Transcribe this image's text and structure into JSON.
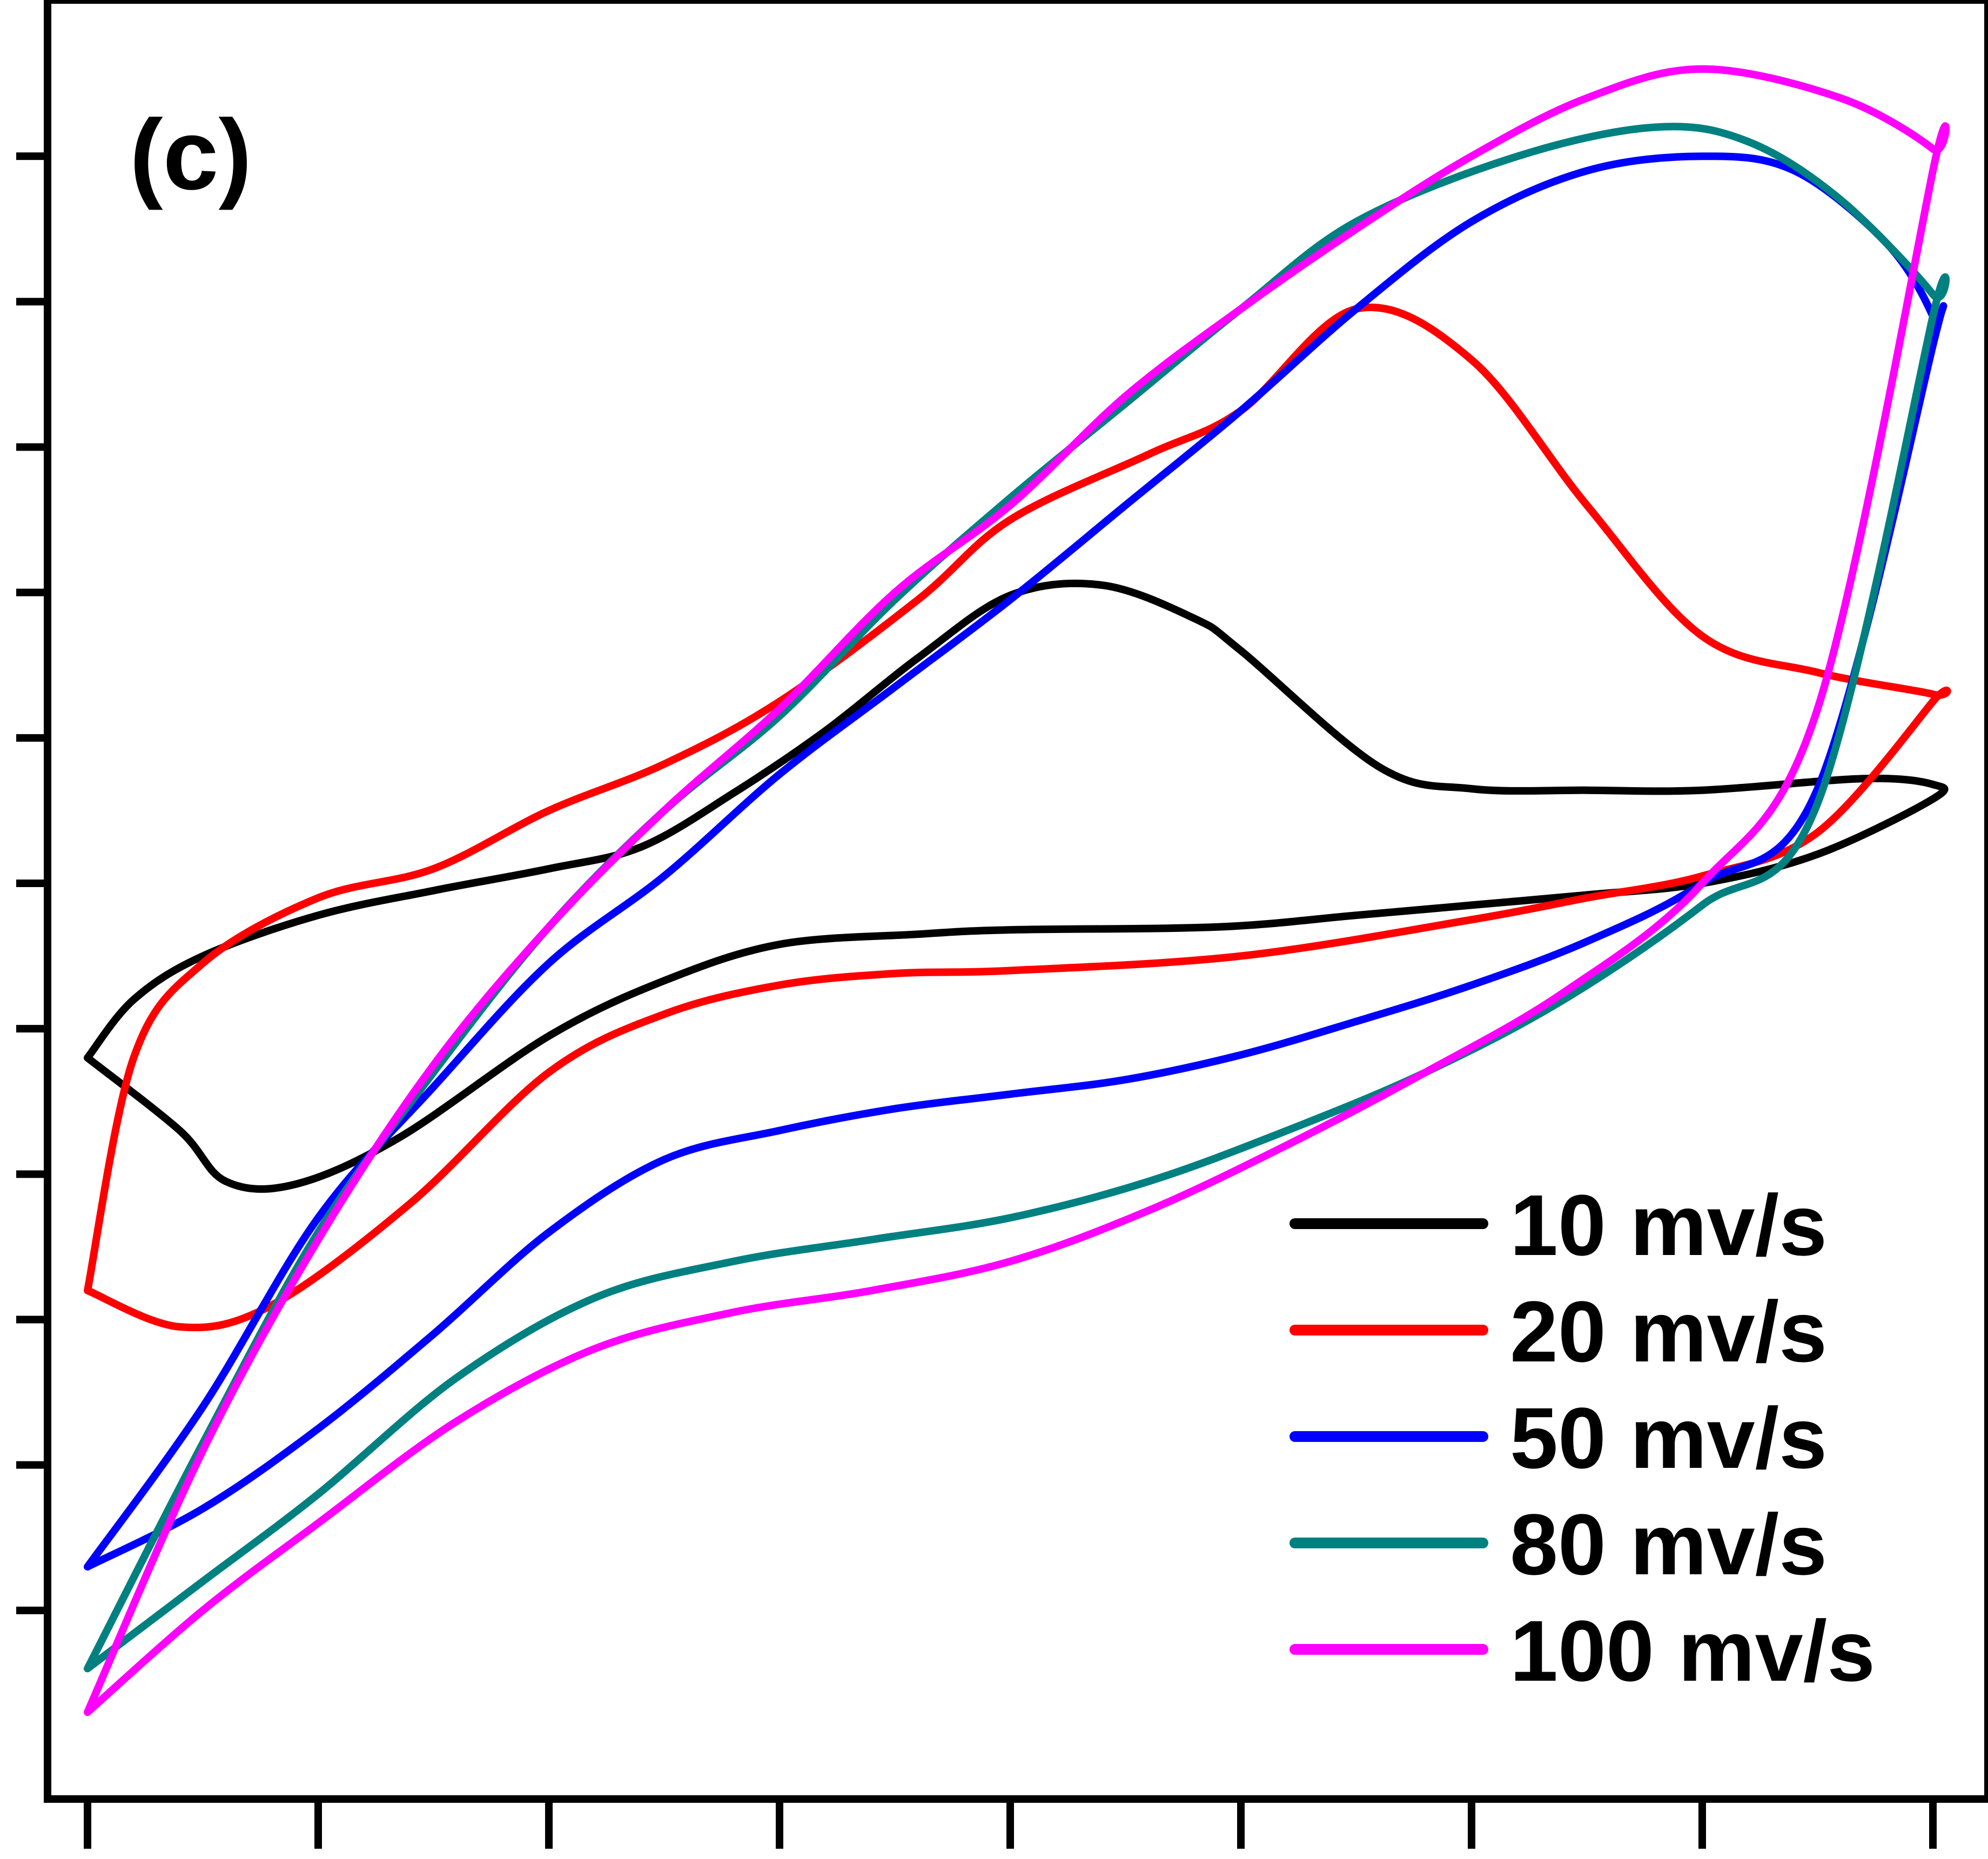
{
  "chart_data": {
    "type": "line",
    "panel_label": "(c)",
    "xlabel": "",
    "ylabel": "",
    "x_tick_labels": [],
    "y_tick_labels": [],
    "xlim": [
      0,
      8
    ],
    "ylim": [
      -6,
      6
    ],
    "x_ticks": [
      0,
      1,
      2,
      3,
      4,
      5,
      6,
      7,
      8
    ],
    "y_ticks": [
      -5,
      -4,
      -3,
      -2,
      -1,
      0,
      1,
      2,
      3,
      4,
      5
    ],
    "grid": false,
    "legend_position": "bottom-right",
    "series": [
      {
        "name": "10 mv/s",
        "color": "#000000",
        "x": [
          0,
          0.4,
          0.6,
          0.9,
          1.35,
          2.0,
          2.5,
          3.0,
          3.6,
          4.0,
          4.9,
          5.5,
          6.0,
          6.5,
          7.0,
          7.5,
          8.0,
          8.0,
          7.7,
          7.0,
          6.5,
          6.0,
          5.6,
          5.0,
          4.8,
          4.4,
          4.0,
          3.6,
          3.2,
          2.8,
          2.4,
          2.0,
          1.5,
          1.0,
          0.5,
          0.2,
          0
        ],
        "y": [
          -1.2,
          -1.7,
          -2.05,
          -2.07,
          -1.75,
          -1.05,
          -0.67,
          -0.42,
          -0.35,
          -0.32,
          -0.3,
          -0.22,
          -0.15,
          -0.08,
          0.0,
          0.2,
          0.58,
          0.68,
          0.72,
          0.64,
          0.64,
          0.65,
          0.8,
          1.6,
          1.82,
          2.05,
          1.98,
          1.55,
          1.05,
          0.62,
          0.25,
          0.1,
          -0.05,
          -0.22,
          -0.5,
          -0.8,
          -1.2
        ]
      },
      {
        "name": "20 mv/s",
        "color": "#ff0000",
        "x": [
          0,
          0.4,
          0.8,
          1.4,
          2.0,
          2.5,
          3.0,
          3.5,
          4.0,
          5.0,
          6.0,
          6.5,
          7.0,
          7.5,
          8.0,
          8.0,
          7.5,
          7.0,
          6.5,
          6.0,
          5.5,
          5.0,
          4.6,
          4.0,
          3.6,
          3.0,
          2.5,
          2.0,
          1.5,
          1.0,
          0.5,
          0.2,
          0
        ],
        "y": [
          -2.8,
          -3.05,
          -2.9,
          -2.2,
          -1.3,
          -0.9,
          -0.7,
          -0.62,
          -0.6,
          -0.5,
          -0.25,
          -0.1,
          0.05,
          0.35,
          1.25,
          1.3,
          1.45,
          1.7,
          2.6,
          3.6,
          3.95,
          3.25,
          2.95,
          2.5,
          1.95,
          1.25,
          0.82,
          0.5,
          0.1,
          -0.1,
          -0.55,
          -1.2,
          -2.8
        ]
      },
      {
        "name": "50 mv/s",
        "color": "#0000ff",
        "x": [
          0,
          0.5,
          1.0,
          1.5,
          2.0,
          2.5,
          3.0,
          3.5,
          4.0,
          4.5,
          5.0,
          5.5,
          6.0,
          6.5,
          7.0,
          7.5,
          8.0,
          8.0,
          7.8,
          7.4,
          7.0,
          6.5,
          6.0,
          5.5,
          5.0,
          4.5,
          4.0,
          3.5,
          3.0,
          2.5,
          2.0,
          1.5,
          1.0,
          0.5,
          0
        ],
        "y": [
          -4.7,
          -4.3,
          -3.75,
          -3.1,
          -2.4,
          -1.9,
          -1.7,
          -1.55,
          -1.45,
          -1.35,
          -1.18,
          -0.95,
          -0.7,
          -0.4,
          0.0,
          0.65,
          3.7,
          3.9,
          4.4,
          4.9,
          5.0,
          4.9,
          4.55,
          3.95,
          3.25,
          2.6,
          1.95,
          1.35,
          0.75,
          0.05,
          -0.55,
          -1.4,
          -2.3,
          -3.6,
          -4.7
        ]
      },
      {
        "name": "80 mv/s",
        "color": "#008080",
        "x": [
          0,
          0.5,
          1.0,
          1.6,
          2.2,
          2.8,
          3.4,
          4.0,
          4.6,
          5.2,
          5.8,
          6.4,
          7.0,
          7.5,
          8.0,
          8.0,
          7.6,
          7.2,
          6.8,
          6.2,
          5.5,
          5.0,
          4.5,
          4.0,
          3.5,
          3.0,
          2.5,
          2.0,
          1.5,
          1.0,
          0.5,
          0
        ],
        "y": [
          -5.4,
          -4.8,
          -4.2,
          -3.4,
          -2.85,
          -2.6,
          -2.45,
          -2.3,
          -2.05,
          -1.7,
          -1.3,
          -0.8,
          -0.15,
          0.55,
          3.9,
          4.05,
          4.7,
          5.1,
          5.2,
          5.0,
          4.55,
          3.95,
          3.3,
          2.65,
          1.95,
          1.15,
          0.5,
          -0.3,
          -1.3,
          -2.4,
          -3.85,
          -5.4
        ]
      },
      {
        "name": "100 mv/s",
        "color": "#ff00ff",
        "x": [
          0,
          0.5,
          1.0,
          1.6,
          2.2,
          2.8,
          3.4,
          4.0,
          4.6,
          5.2,
          5.8,
          6.4,
          7.0,
          7.5,
          8.0,
          8.0,
          7.6,
          7.0,
          6.5,
          6.0,
          5.5,
          5.0,
          4.5,
          4.0,
          3.5,
          3.0,
          2.5,
          2.0,
          1.5,
          1.0,
          0.5,
          0
        ],
        "y": [
          -5.7,
          -5.0,
          -4.4,
          -3.7,
          -3.2,
          -2.95,
          -2.8,
          -2.6,
          -2.25,
          -1.8,
          -1.3,
          -0.75,
          0.0,
          1.2,
          4.9,
          5.05,
          5.4,
          5.6,
          5.4,
          5.0,
          4.5,
          3.95,
          3.35,
          2.6,
          2.0,
          1.2,
          0.5,
          -0.3,
          -1.25,
          -2.45,
          -3.9,
          -5.7
        ]
      }
    ]
  }
}
